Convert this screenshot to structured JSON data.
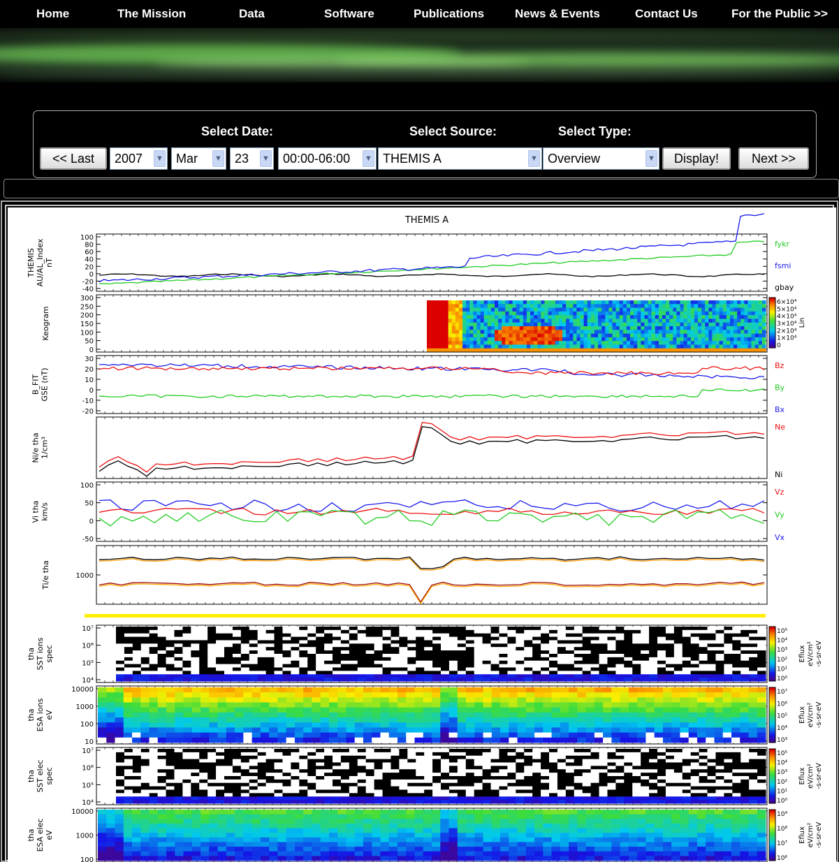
{
  "nav": {
    "items": [
      "Home",
      "The Mission",
      "Data",
      "Software",
      "Publications",
      "News & Events",
      "Contact Us",
      "For the Public >>"
    ]
  },
  "selector": {
    "date_label": "Select Date:",
    "source_label": "Select Source:",
    "type_label": "Select Type:",
    "last_button": "<< Last",
    "year": "2007",
    "month": "Mar",
    "day": "23",
    "time_range": "00:00-06:00",
    "source": "THEMIS A",
    "type": "Overview",
    "display_button": "Display!",
    "next_button": "Next >>"
  },
  "plot": {
    "title": "THEMIS A",
    "panels": [
      {
        "ylabel": [
          "THEMIS",
          "AU/AL_Index",
          "nT"
        ],
        "ticks": [
          "100",
          "80",
          "60",
          "40",
          "20",
          "0",
          "-20",
          "-40"
        ],
        "legend": [
          "fykr",
          "fsmi",
          "gbay"
        ]
      },
      {
        "ylabel": [
          "Keogram"
        ],
        "ticks": [
          "300",
          "250",
          "200",
          "150",
          "100",
          "50",
          "0"
        ],
        "colorbar_ticks": [
          "6×10⁴",
          "5×10⁴",
          "4×10⁴",
          "3×10⁴",
          "2×10⁴",
          "1×10⁴",
          "0"
        ],
        "colorbar_label": "Lin"
      },
      {
        "ylabel": [
          "B_FIT",
          "GSE (nT)"
        ],
        "ticks": [
          "30",
          "20",
          "10",
          "0",
          "-10",
          "-20"
        ],
        "legend": [
          "Bz",
          "By",
          "Bx"
        ]
      },
      {
        "ylabel": [
          "Ni/e tha",
          "1/cm³"
        ],
        "ticks": [],
        "legend": [
          "Ne",
          "Ni"
        ]
      },
      {
        "ylabel": [
          "Vi tha",
          "km/s"
        ],
        "ticks": [
          "100",
          "50",
          "0",
          "-50"
        ],
        "legend": [
          "Vz",
          "Vy",
          "Vx"
        ]
      },
      {
        "ylabel": [
          "Ti/e tha"
        ],
        "ticks": [
          "1000"
        ]
      },
      {
        "ylabel": [
          "tha",
          "SST ions",
          "spec"
        ],
        "ticks": [
          "10⁷",
          "10⁶",
          "10⁵",
          "10⁴"
        ],
        "colorbar_ticks": [
          "10⁵",
          "10⁴",
          "10³",
          "10²",
          "10¹",
          "10⁰"
        ],
        "colorbar_label": [
          "Eflux",
          "eV/cm²",
          "-s-sr-eV"
        ]
      },
      {
        "ylabel": [
          "tha",
          "ESA ions",
          "eV"
        ],
        "ticks": [
          "10000",
          "1000",
          "100",
          "10"
        ],
        "colorbar_ticks": [
          "10⁷",
          "10⁶",
          "10⁵",
          "10⁴",
          "10³"
        ],
        "colorbar_label": [
          "Eflux",
          "eV/cm²",
          "-s-sr-eV"
        ]
      },
      {
        "ylabel": [
          "tha",
          "SST elec",
          "spec"
        ],
        "ticks": [
          "10⁷",
          "10⁶",
          "10⁵",
          "10⁴"
        ],
        "colorbar_ticks": [
          "10⁵",
          "10⁴",
          "10³",
          "10²",
          "10¹",
          "10⁰"
        ],
        "colorbar_label": [
          "Eflux",
          "eV/cm²",
          "-s-sr-eV"
        ]
      },
      {
        "ylabel": [
          "tha",
          "ESA elec",
          "eV"
        ],
        "ticks": [
          "10000",
          "1000",
          "100"
        ],
        "colorbar_ticks": [
          "10⁹",
          "10⁸",
          "10⁷",
          "10⁶"
        ],
        "colorbar_label": [
          "Eflux",
          "eV/cm²",
          "-s-sr-eV"
        ]
      }
    ],
    "colors": {
      "green": "#22cc22",
      "blue": "#1a1aee",
      "red": "#ee1111",
      "black": "#000000",
      "yellow": "#ffee00"
    }
  }
}
